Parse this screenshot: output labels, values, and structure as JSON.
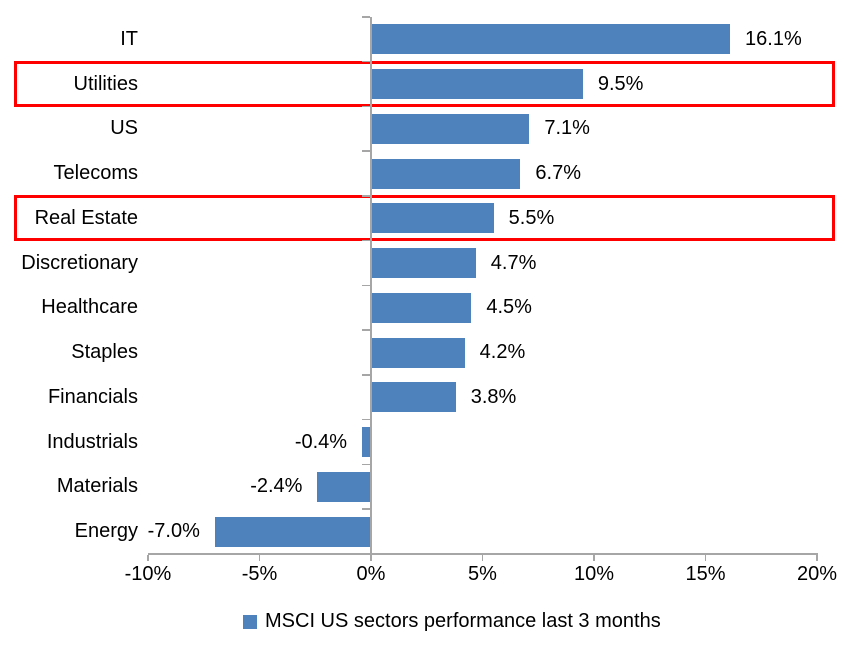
{
  "chart_data": {
    "type": "bar",
    "orientation": "horizontal",
    "title": "",
    "categories": [
      "IT",
      "Utilities",
      "US",
      "Telecoms",
      "Real Estate",
      "Discretionary",
      "Healthcare",
      "Staples",
      "Financials",
      "Industrials",
      "Materials",
      "Energy"
    ],
    "values": [
      16.1,
      9.5,
      7.1,
      6.7,
      5.5,
      4.7,
      4.5,
      4.2,
      3.8,
      -0.4,
      -2.4,
      -7.0
    ],
    "value_labels": [
      "16.1%",
      "9.5%",
      "7.1%",
      "6.7%",
      "5.5%",
      "4.7%",
      "4.5%",
      "4.2%",
      "3.8%",
      "-0.4%",
      "-2.4%",
      "-7.0%"
    ],
    "highlighted_categories": [
      "Utilities",
      "Real Estate"
    ],
    "x_tick_labels": [
      "-10%",
      "-5%",
      "0%",
      "5%",
      "10%",
      "15%",
      "20%"
    ],
    "x_tick_values": [
      -10,
      -5,
      0,
      5,
      10,
      15,
      20
    ],
    "xlim": [
      -10,
      20
    ],
    "grid": false,
    "legend": {
      "label": "MSCI US sectors performance last 3 months",
      "position": "bottom-center"
    },
    "colors": {
      "bar": "#4d82bc",
      "highlight_border": "#fe0000",
      "axis": "#a6a6a6",
      "text": "#000000",
      "background": "#ffffff"
    }
  }
}
